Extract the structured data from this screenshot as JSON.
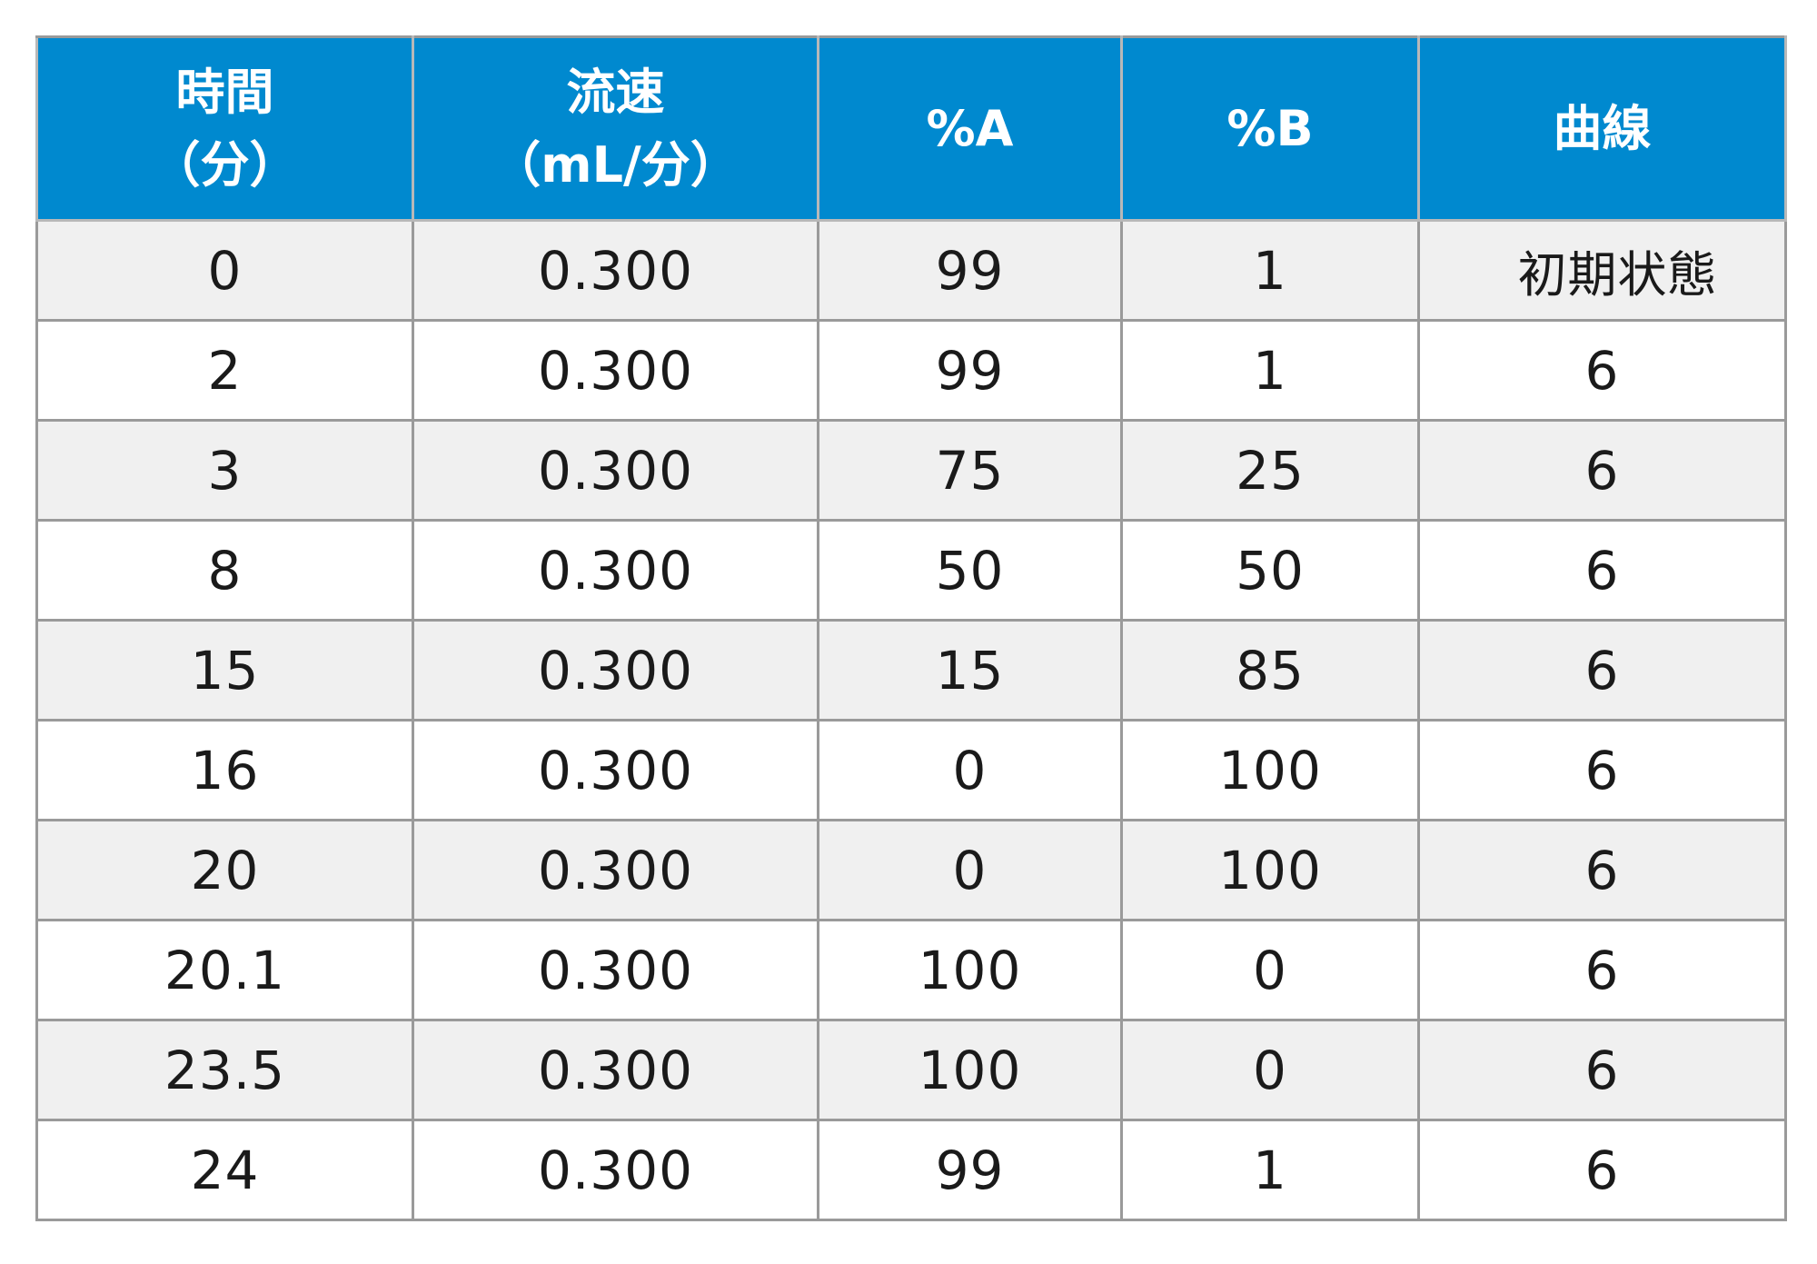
{
  "headers": [
    {
      "line1": "時間",
      "line2": "（分）"
    },
    {
      "line1": "流速",
      "line2": "（mL/分）"
    },
    {
      "line1": "%A",
      "line2": ""
    },
    {
      "line1": "%B",
      "line2": ""
    },
    {
      "line1": "曲線",
      "line2": ""
    }
  ],
  "rows": [
    {
      "time": "0",
      "flow": "0.300",
      "a": "99",
      "b": "1",
      "curve": "初期状態"
    },
    {
      "time": "2",
      "flow": "0.300",
      "a": "99",
      "b": "1",
      "curve": "6"
    },
    {
      "time": "3",
      "flow": "0.300",
      "a": "75",
      "b": "25",
      "curve": "6"
    },
    {
      "time": "8",
      "flow": "0.300",
      "a": "50",
      "b": "50",
      "curve": "6"
    },
    {
      "time": "15",
      "flow": "0.300",
      "a": "15",
      "b": "85",
      "curve": "6"
    },
    {
      "time": "16",
      "flow": "0.300",
      "a": "0",
      "b": "100",
      "curve": "6"
    },
    {
      "time": "20",
      "flow": "0.300",
      "a": "0",
      "b": "100",
      "curve": "6"
    },
    {
      "time": "20.1",
      "flow": "0.300",
      "a": "100",
      "b": "0",
      "curve": "6"
    },
    {
      "time": "23.5",
      "flow": "0.300",
      "a": "100",
      "b": "0",
      "curve": "6"
    },
    {
      "time": "24",
      "flow": "0.300",
      "a": "99",
      "b": "1",
      "curve": "6"
    }
  ],
  "colors": {
    "header_bg": "#0089cf",
    "header_text": "#ffffff",
    "row_alt_bg": "#f0f0f0",
    "border": "#9a9a9a"
  }
}
